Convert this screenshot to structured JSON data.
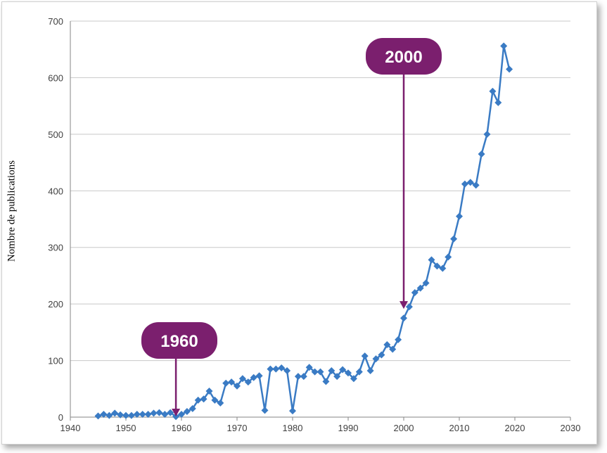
{
  "chart_data": {
    "type": "line",
    "ylabel": "Nombre de publications",
    "xlim": [
      1940,
      2030
    ],
    "ylim": [
      0,
      700
    ],
    "x_ticks": [
      1940,
      1950,
      1960,
      1970,
      1980,
      1990,
      2000,
      2010,
      2020,
      2030
    ],
    "y_ticks": [
      0,
      100,
      200,
      300,
      400,
      500,
      600,
      700
    ],
    "grid": "horizontal",
    "legend": "none",
    "marker": "diamond",
    "colors": {
      "series": "#3a7bc4",
      "callout": "#7b1f6e",
      "grid": "#c8c8c8"
    },
    "series": [
      {
        "x": [
          1945,
          1946,
          1947,
          1948,
          1949,
          1950,
          1951,
          1952,
          1953,
          1954,
          1955,
          1956,
          1957,
          1958,
          1959,
          1960,
          1961,
          1962,
          1963,
          1964,
          1965,
          1966,
          1967,
          1968,
          1969,
          1970,
          1971,
          1972,
          1973,
          1974,
          1975,
          1976,
          1977,
          1978,
          1979,
          1980,
          1981,
          1982,
          1983,
          1984,
          1985,
          1986,
          1987,
          1988,
          1989,
          1990,
          1991,
          1992,
          1993,
          1994,
          1995,
          1996,
          1997,
          1998,
          1999,
          2000,
          2001,
          2002,
          2003,
          2004,
          2005,
          2006,
          2007,
          2008,
          2009,
          2010,
          2011,
          2012,
          2013,
          2014,
          2015,
          2016,
          2017,
          2018,
          2019
        ],
        "y": [
          2,
          5,
          3,
          7,
          4,
          3,
          3,
          5,
          5,
          5,
          7,
          8,
          5,
          8,
          1,
          5,
          10,
          15,
          30,
          32,
          46,
          30,
          25,
          60,
          62,
          55,
          68,
          62,
          70,
          73,
          12,
          85,
          85,
          87,
          82,
          11,
          72,
          72,
          88,
          80,
          80,
          63,
          82,
          72,
          84,
          78,
          68,
          80,
          108,
          82,
          103,
          110,
          128,
          120,
          137,
          175,
          195,
          220,
          228,
          237,
          278,
          267,
          263,
          283,
          315,
          355,
          412,
          415,
          410,
          465,
          500,
          576,
          556,
          656,
          615
        ]
      }
    ],
    "annotations": [
      {
        "label": "1960",
        "x": 1959,
        "y": 0
      },
      {
        "label": "2000",
        "x": 2000,
        "y": 190
      }
    ]
  }
}
